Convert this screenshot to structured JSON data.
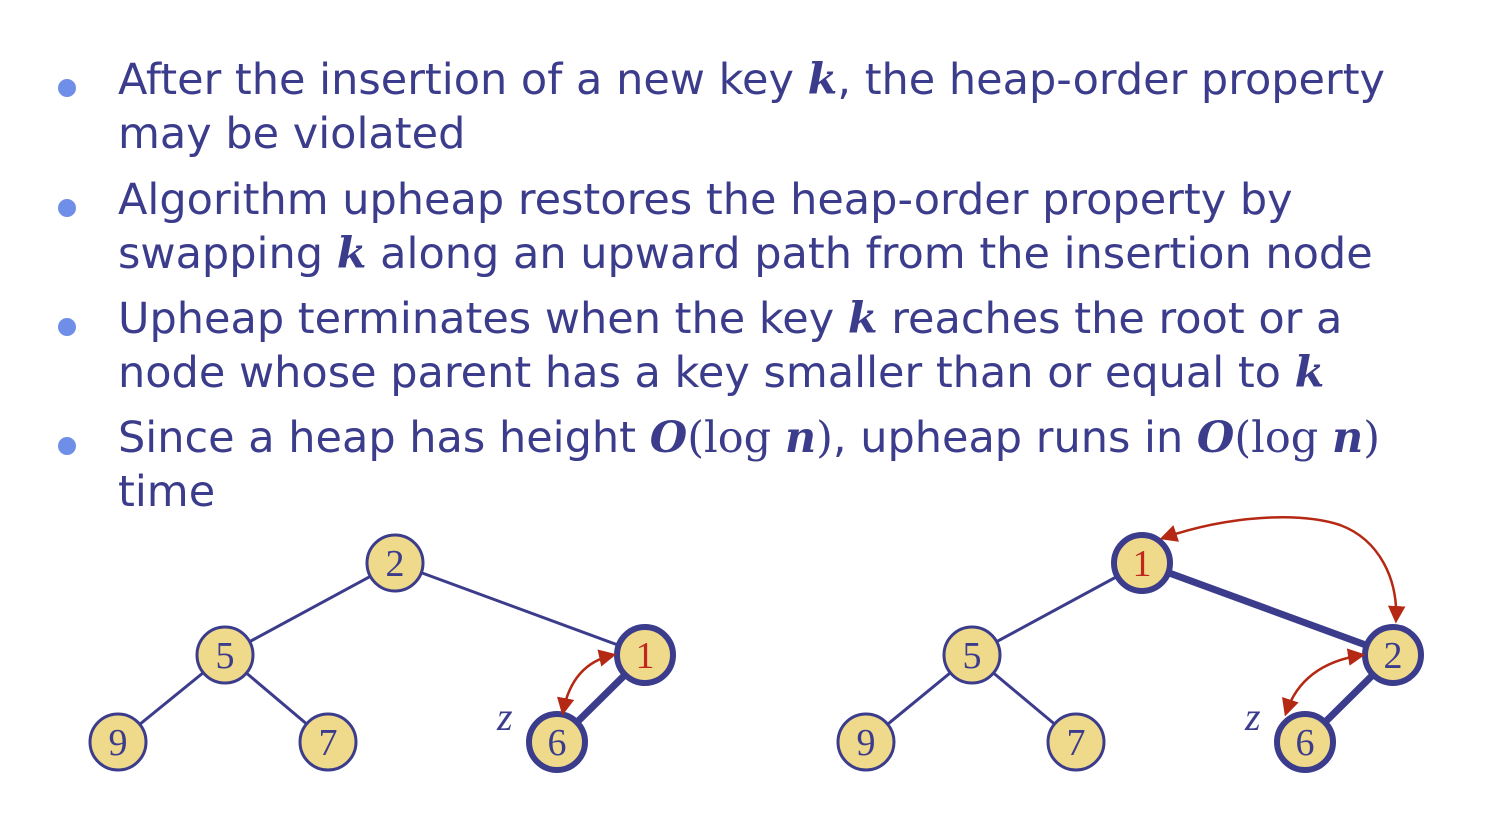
{
  "bullets": [
    {
      "line1": {
        "pre": "After the insertion of a new key ",
        "var": "k",
        "post": ", the heap-order property"
      },
      "line2": "may be violated"
    },
    {
      "line1": "Algorithm upheap restores the heap-order property by",
      "line2": {
        "pre": "swapping ",
        "var": "k",
        "post": " along an upward path from the insertion node"
      }
    },
    {
      "line1": {
        "pre": "Upheap terminates when the key ",
        "var": "k",
        "post": " reaches the root or a"
      },
      "line2": {
        "pre": "node whose parent has a key smaller than or equal to ",
        "var": "k"
      }
    },
    {
      "line1": {
        "pre": "Since a heap has height ",
        "big_o": "O",
        "log": "(log ",
        "n": "n",
        "close": ")",
        "mid": ", upheap runs in "
      },
      "line2": "time"
    }
  ],
  "trees": {
    "left": {
      "root": "2",
      "left": "5",
      "right": "1",
      "left_left": "9",
      "left_right": "7",
      "right_left": "6",
      "z_label": "z"
    },
    "right": {
      "root": "1",
      "left": "5",
      "right": "2",
      "left_left": "9",
      "left_right": "7",
      "right_left": "6",
      "z_label": "z"
    }
  },
  "colors": {
    "text": "#3c3c8c",
    "bullet": "#6f8ee8",
    "node_fill": "#efd98a",
    "node_stroke": "#3c3c8c",
    "swapped_key": "#c0281e",
    "arrow": "#b42814"
  }
}
